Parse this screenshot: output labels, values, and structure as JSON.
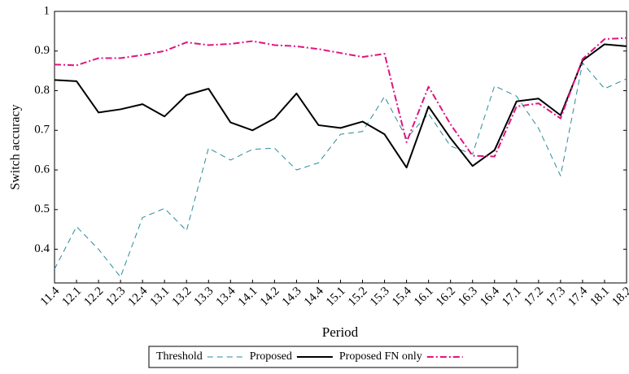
{
  "chart_data": {
    "type": "line",
    "x_label": "Period",
    "y_label": "Switch accuracy",
    "categories": [
      "11.4",
      "12.1",
      "12.2",
      "12.3",
      "12.4",
      "13.1",
      "13.2",
      "13.3",
      "13.4",
      "14.1",
      "14.2",
      "14.3",
      "14.4",
      "15.1",
      "15.2",
      "15.3",
      "15.4",
      "16.1",
      "16.2",
      "16.3",
      "16.4",
      "17.1",
      "17.2",
      "17.3",
      "17.4",
      "18.1",
      "18.2"
    ],
    "series": [
      {
        "name": "Threshold",
        "color": "#2a8a99",
        "dash": "dashed",
        "values": [
          0.35,
          0.457,
          0.4,
          0.33,
          0.48,
          0.503,
          0.447,
          0.655,
          0.625,
          0.652,
          0.655,
          0.6,
          0.618,
          0.69,
          0.697,
          0.785,
          0.68,
          0.742,
          0.66,
          0.64,
          0.812,
          0.786,
          0.705,
          0.585,
          0.87,
          0.805,
          0.83
        ]
      },
      {
        "name": "Proposed",
        "color": "#000000",
        "dash": "solid",
        "values": [
          0.827,
          0.824,
          0.745,
          0.753,
          0.766,
          0.735,
          0.789,
          0.805,
          0.72,
          0.7,
          0.73,
          0.793,
          0.713,
          0.706,
          0.722,
          0.69,
          0.606,
          0.76,
          0.68,
          0.61,
          0.65,
          0.773,
          0.78,
          0.738,
          0.876,
          0.917,
          0.912
        ]
      },
      {
        "name": "Proposed FN only",
        "color": "#e0157f",
        "dash": "dashdot",
        "values": [
          0.866,
          0.864,
          0.882,
          0.882,
          0.89,
          0.9,
          0.922,
          0.915,
          0.918,
          0.925,
          0.915,
          0.912,
          0.905,
          0.895,
          0.885,
          0.893,
          0.67,
          0.81,
          0.715,
          0.636,
          0.634,
          0.76,
          0.768,
          0.73,
          0.88,
          0.93,
          0.933
        ]
      }
    ],
    "ylim": [
      0.315,
      1
    ],
    "yticks": [
      0.4,
      0.5,
      0.6,
      0.7,
      0.8,
      0.9,
      1
    ],
    "legend": "bottom"
  }
}
